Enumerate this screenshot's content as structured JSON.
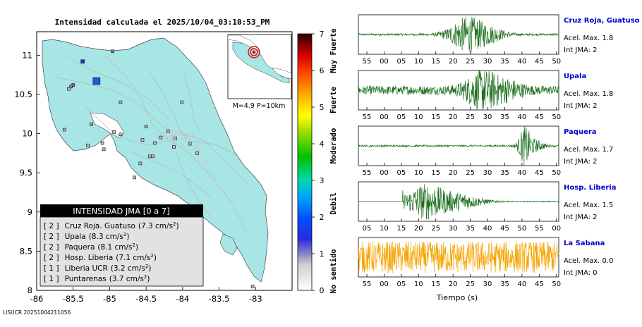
{
  "map": {
    "title": "Intensidad calculada el 2025/10/04_03:10:53_PM",
    "footer_id": "LISUCR 20251004211056",
    "lat_ticks": [
      "11",
      "10.5",
      "10",
      "9.5",
      "9",
      "8.5",
      "8"
    ],
    "lon_ticks": [
      "-86",
      "-85.5",
      "-85",
      "-84.5",
      "-84",
      "-83.5",
      "-83"
    ],
    "inset_caption": "M=4.9 P=10km",
    "legend": {
      "header": "INTENSIDAD JMA [0 a 7]",
      "entries": [
        {
          "value": "[ 2 ]",
          "station": "Cruz Roja. Guatuso",
          "accel": "(7.3 cm/s",
          "sup": "2",
          "close": ")"
        },
        {
          "value": "[ 2 ]",
          "station": "Upala",
          "accel": "(8.3 cm/s",
          "sup": "2",
          "close": ")"
        },
        {
          "value": "[ 2 ]",
          "station": "Paquera",
          "accel": "(8.1 cm/s",
          "sup": "2",
          "close": ")"
        },
        {
          "value": "[ 2 ]",
          "station": "Hosp. Liberia",
          "accel": "(7.1 cm/s",
          "sup": "2",
          "close": ")"
        },
        {
          "value": "[ 1 ]",
          "station": "Liberia UCR",
          "accel": "(3.2 cm/s",
          "sup": "2",
          "close": ")"
        },
        {
          "value": "[ 1 ]",
          "station": "Puntarenas",
          "accel": "(3.7 cm/s",
          "sup": "2",
          "close": ")"
        }
      ]
    }
  },
  "colorbar": {
    "ticks": [
      "0",
      "1",
      "2",
      "3",
      "4",
      "5",
      "6",
      "7"
    ],
    "categories": [
      "No sentido",
      "Debil",
      "Moderado",
      "Fuerte",
      "Muy Fuerte"
    ]
  },
  "colors": {
    "land": "#a8e6e6",
    "waveform": "#1a6e1a",
    "waveform_last": "#f5a300",
    "station_name": "#0000cc",
    "legend_header_bg": "#000000",
    "legend_body_bg": "#e2e2e2"
  },
  "waveforms": {
    "xlabel": "Tiempo (s)",
    "panels": [
      {
        "station": "Cruz Roja, Guatuso",
        "accel": "Acel. Max. 1.8",
        "jma": "Int JMA: 2",
        "ticks": [
          "55",
          "00",
          "05",
          "10",
          "15",
          "20",
          "25",
          "30",
          "35",
          "40",
          "45",
          "50"
        ]
      },
      {
        "station": "Upala",
        "accel": "Acel. Max. 1.8",
        "jma": "Int JMA: 2",
        "ticks": [
          "55",
          "00",
          "05",
          "10",
          "15",
          "20",
          "25",
          "30",
          "35",
          "40",
          "45",
          "50"
        ]
      },
      {
        "station": "Paquera",
        "accel": "Acel. Max. 1.7",
        "jma": "Int JMA: 2",
        "ticks": [
          "55",
          "00",
          "05",
          "10",
          "15",
          "20",
          "25",
          "30",
          "35",
          "40",
          "45",
          "50"
        ]
      },
      {
        "station": "Hosp. Liberia",
        "accel": "Acel. Max. 1.5",
        "jma": "Int JMA: 2",
        "ticks": [
          "05",
          "10",
          "15",
          "20",
          "25",
          "30",
          "35",
          "40",
          "45",
          "50",
          "55",
          "00"
        ]
      },
      {
        "station": "La Sabana",
        "accel": "Acel. Max. 0.0",
        "jma": "Int JMA: 0",
        "ticks": [
          "55",
          "00",
          "05",
          "10",
          "15",
          "20",
          "25",
          "30",
          "35",
          "40",
          "45",
          "50"
        ]
      }
    ]
  },
  "chart_data": {
    "type": "scatter",
    "title": "Intensidad calculada el 2025/10/04_03:10:53_PM",
    "xlabel": "",
    "ylabel": "",
    "xlim": [
      -86.0,
      -82.5
    ],
    "ylim": [
      8.0,
      11.3
    ],
    "x_ticks": [
      -86,
      -85.5,
      -85,
      -84.5,
      -84,
      -83.5,
      -83
    ],
    "y_ticks": [
      8,
      8.5,
      9,
      9.5,
      10,
      10.5,
      11
    ],
    "colorbar_range": [
      0,
      7
    ],
    "stations_jma": [
      {
        "name": "Cruz Roja. Guatuso",
        "jma": 2,
        "accel_cm_s2": 7.3
      },
      {
        "name": "Upala",
        "jma": 2,
        "accel_cm_s2": 8.3
      },
      {
        "name": "Paquera",
        "jma": 2,
        "accel_cm_s2": 8.1
      },
      {
        "name": "Hosp. Liberia",
        "jma": 2,
        "accel_cm_s2": 7.1
      },
      {
        "name": "Liberia UCR",
        "jma": 1,
        "accel_cm_s2": 3.2
      },
      {
        "name": "Puntarenas",
        "jma": 1,
        "accel_cm_s2": 3.7
      }
    ],
    "epicenter": {
      "magnitude": 4.9,
      "depth_km": 10
    },
    "waveform_panels": [
      {
        "station": "Cruz Roja, Guatuso",
        "accel_max": 1.8,
        "int_jma": 2
      },
      {
        "station": "Upala",
        "accel_max": 1.8,
        "int_jma": 2
      },
      {
        "station": "Paquera",
        "accel_max": 1.7,
        "int_jma": 2
      },
      {
        "station": "Hosp. Liberia",
        "accel_max": 1.5,
        "int_jma": 2
      },
      {
        "station": "La Sabana",
        "accel_max": 0.0,
        "int_jma": 0
      }
    ]
  }
}
